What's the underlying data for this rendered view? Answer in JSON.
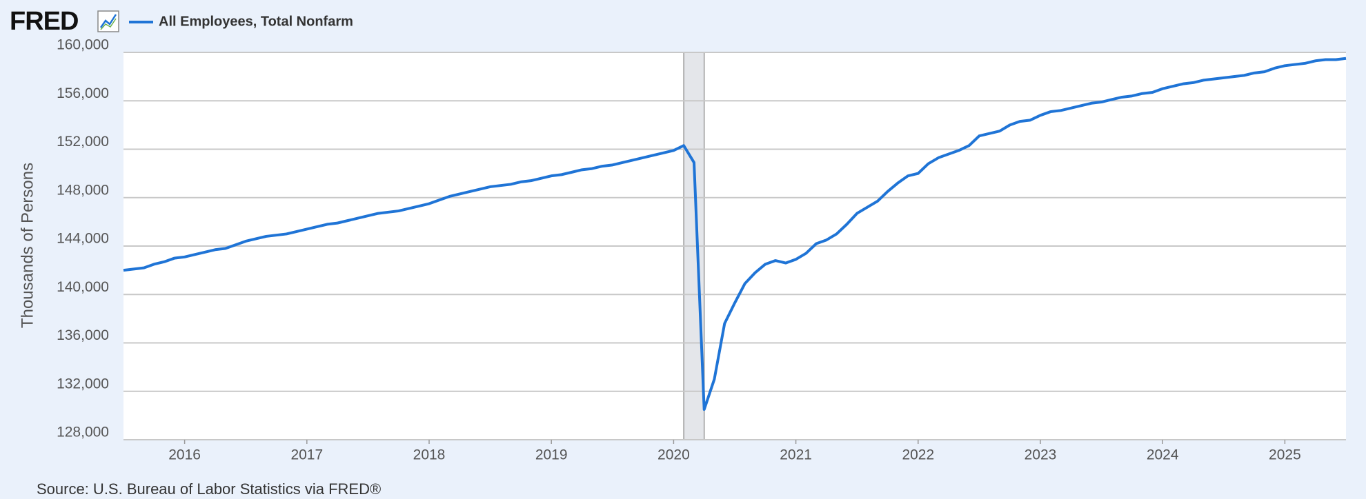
{
  "logo": "FRED",
  "chart_data": {
    "type": "line",
    "ylabel": "Thousands of Persons",
    "source": "Source: U.S. Bureau of Labor Statistics via FRED®",
    "x": [
      2015.5,
      2015.583,
      2015.667,
      2015.75,
      2015.833,
      2015.917,
      2016,
      2016.083,
      2016.167,
      2016.25,
      2016.333,
      2016.417,
      2016.5,
      2016.583,
      2016.667,
      2016.75,
      2016.833,
      2016.917,
      2017,
      2017.083,
      2017.167,
      2017.25,
      2017.333,
      2017.417,
      2017.5,
      2017.583,
      2017.667,
      2017.75,
      2017.833,
      2017.917,
      2018,
      2018.083,
      2018.167,
      2018.25,
      2018.333,
      2018.417,
      2018.5,
      2018.583,
      2018.667,
      2018.75,
      2018.833,
      2018.917,
      2019,
      2019.083,
      2019.167,
      2019.25,
      2019.333,
      2019.417,
      2019.5,
      2019.583,
      2019.667,
      2019.75,
      2019.833,
      2019.917,
      2020,
      2020.083,
      2020.167,
      2020.25,
      2020.333,
      2020.417,
      2020.5,
      2020.583,
      2020.667,
      2020.75,
      2020.833,
      2020.917,
      2021,
      2021.083,
      2021.167,
      2021.25,
      2021.333,
      2021.417,
      2021.5,
      2021.583,
      2021.667,
      2021.75,
      2021.833,
      2021.917,
      2022,
      2022.083,
      2022.167,
      2022.25,
      2022.333,
      2022.417,
      2022.5,
      2022.583,
      2022.667,
      2022.75,
      2022.833,
      2022.917,
      2023,
      2023.083,
      2023.167,
      2023.25,
      2023.333,
      2023.417,
      2023.5,
      2023.583,
      2023.667,
      2023.75,
      2023.833,
      2023.917,
      2024,
      2024.083,
      2024.167,
      2024.25,
      2024.333,
      2024.417,
      2024.5,
      2024.583,
      2024.667,
      2024.75,
      2024.833,
      2024.917,
      2025,
      2025.083,
      2025.167,
      2025.25,
      2025.333,
      2025.417,
      2025.5
    ],
    "series": [
      {
        "name": "All Employees, Total Nonfarm",
        "color": "#1f74d6",
        "values": [
          142000,
          142100,
          142200,
          142500,
          142700,
          143000,
          143100,
          143300,
          143500,
          143700,
          143800,
          144100,
          144400,
          144600,
          144800,
          144900,
          145000,
          145200,
          145400,
          145600,
          145800,
          145900,
          146100,
          146300,
          146500,
          146700,
          146800,
          146900,
          147100,
          147300,
          147500,
          147800,
          148100,
          148300,
          148500,
          148700,
          148900,
          149000,
          149100,
          149300,
          149400,
          149600,
          149800,
          149900,
          150100,
          150300,
          150400,
          150600,
          150700,
          150900,
          151100,
          151300,
          151500,
          151700,
          151900,
          152300,
          150900,
          130500,
          133000,
          137600,
          139300,
          140900,
          141800,
          142500,
          142800,
          142600,
          142900,
          143400,
          144200,
          144500,
          145000,
          145800,
          146700,
          147200,
          147700,
          148500,
          149200,
          149800,
          150000,
          150800,
          151300,
          151600,
          151900,
          152300,
          153100,
          153300,
          153500,
          154000,
          154300,
          154400,
          154800,
          155100,
          155200,
          155400,
          155600,
          155800,
          155900,
          156100,
          156300,
          156400,
          156600,
          156700,
          157000,
          157200,
          157400,
          157500,
          157700,
          157800,
          157900,
          158000,
          158100,
          158300,
          158400,
          158700,
          158900,
          159000,
          159100,
          159300,
          159400,
          159400,
          159500
        ]
      }
    ],
    "recessions": [
      [
        2020.083,
        2020.25
      ]
    ],
    "xlim": [
      2015.5,
      2025.5
    ],
    "xticks": [
      2016,
      2017,
      2018,
      2019,
      2020,
      2021,
      2022,
      2023,
      2024,
      2025
    ],
    "ylim": [
      128000,
      160000
    ],
    "yticks": [
      {
        "value": 128000,
        "label": "128,000"
      },
      {
        "value": 132000,
        "label": "132,000"
      },
      {
        "value": 136000,
        "label": "136,000"
      },
      {
        "value": 140000,
        "label": "140,000"
      },
      {
        "value": 144000,
        "label": "144,000"
      },
      {
        "value": 148000,
        "label": "148,000"
      },
      {
        "value": 152000,
        "label": "152,000"
      },
      {
        "value": 156000,
        "label": "156,000"
      },
      {
        "value": 160000,
        "label": "160,000"
      }
    ],
    "grid": true
  }
}
